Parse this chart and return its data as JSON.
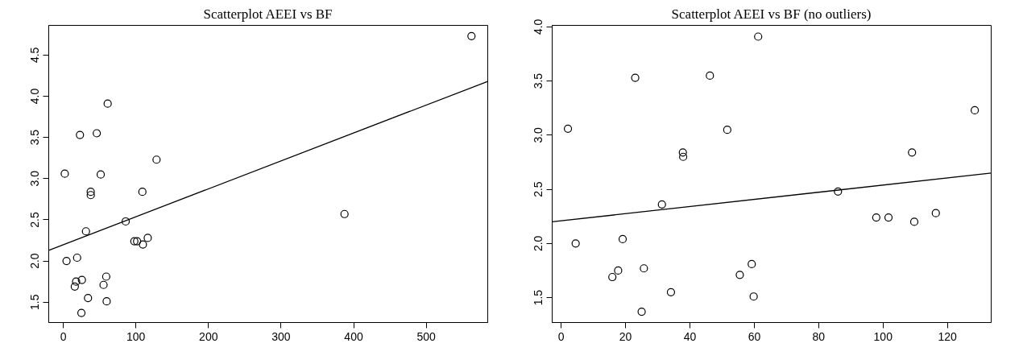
{
  "chart_data": [
    {
      "type": "scatter",
      "title": "Scatterplot AEEI vs BF",
      "grid": false,
      "xlim": [
        -20,
        584.7
      ],
      "ylim": [
        1.253,
        4.86
      ],
      "xticks": [
        0,
        100,
        200,
        300,
        400,
        500
      ],
      "yticks": [
        1.5,
        {
          "value": 2,
          "label": "2.0"
        },
        2.5,
        {
          "value": 3,
          "label": "3.0"
        },
        3.5,
        {
          "value": 4,
          "label": "4.0"
        },
        4.5
      ],
      "series": [
        {
          "marker": "circle",
          "color": "#000000",
          "x": [
            2.1,
            4.5,
            15.9,
            17.7,
            19.1,
            23.0,
            25.0,
            25.7,
            31.3,
            34.1,
            37.8,
            37.9,
            46.2,
            51.6,
            55.5,
            59.2,
            59.8,
            61.2,
            86.0,
            97.9,
            101.7,
            109.0,
            109.7,
            116.4,
            128.5,
            387.4,
            562.3
          ],
          "values": [
            3.06,
            2.0,
            1.69,
            1.75,
            2.04,
            3.53,
            1.37,
            1.77,
            2.36,
            1.55,
            2.84,
            2.8,
            3.55,
            3.05,
            1.71,
            1.81,
            1.51,
            3.91,
            2.48,
            2.24,
            2.24,
            2.84,
            2.2,
            2.28,
            3.23,
            2.57,
            4.73
          ]
        },
        {
          "type": "line",
          "color": "#000000",
          "line_style": "solid",
          "x": [
            -20,
            584.7
          ],
          "values": [
            2.13,
            4.18
          ]
        }
      ]
    },
    {
      "type": "scatter",
      "title": "Scatterplot AEEI vs BF (no outliers)",
      "grid": false,
      "xlim": [
        -2.8,
        133.6
      ],
      "ylim": [
        1.27,
        4.014
      ],
      "xticks": [
        0,
        20,
        40,
        60,
        80,
        100,
        120
      ],
      "yticks": [
        1.5,
        {
          "value": 2,
          "label": "2.0"
        },
        2.5,
        {
          "value": 3,
          "label": "3.0"
        },
        3.5,
        {
          "value": 4,
          "label": "4.0"
        }
      ],
      "series": [
        {
          "marker": "circle",
          "color": "#000000",
          "x": [
            2.1,
            4.5,
            15.9,
            17.7,
            19.1,
            23.0,
            25.0,
            25.7,
            31.3,
            34.1,
            37.8,
            37.9,
            46.2,
            51.6,
            55.5,
            59.2,
            59.8,
            61.2,
            86.0,
            97.9,
            101.7,
            109.0,
            109.7,
            116.4,
            128.5
          ],
          "values": [
            3.06,
            2.0,
            1.69,
            1.75,
            2.04,
            3.53,
            1.37,
            1.77,
            2.36,
            1.55,
            2.84,
            2.8,
            3.55,
            3.05,
            1.71,
            1.81,
            1.51,
            3.91,
            2.48,
            2.24,
            2.24,
            2.84,
            2.2,
            2.28,
            3.23
          ]
        },
        {
          "type": "line",
          "color": "#000000",
          "line_style": "solid",
          "x": [
            -2.8,
            133.6
          ],
          "values": [
            2.2,
            2.65
          ]
        }
      ]
    }
  ]
}
